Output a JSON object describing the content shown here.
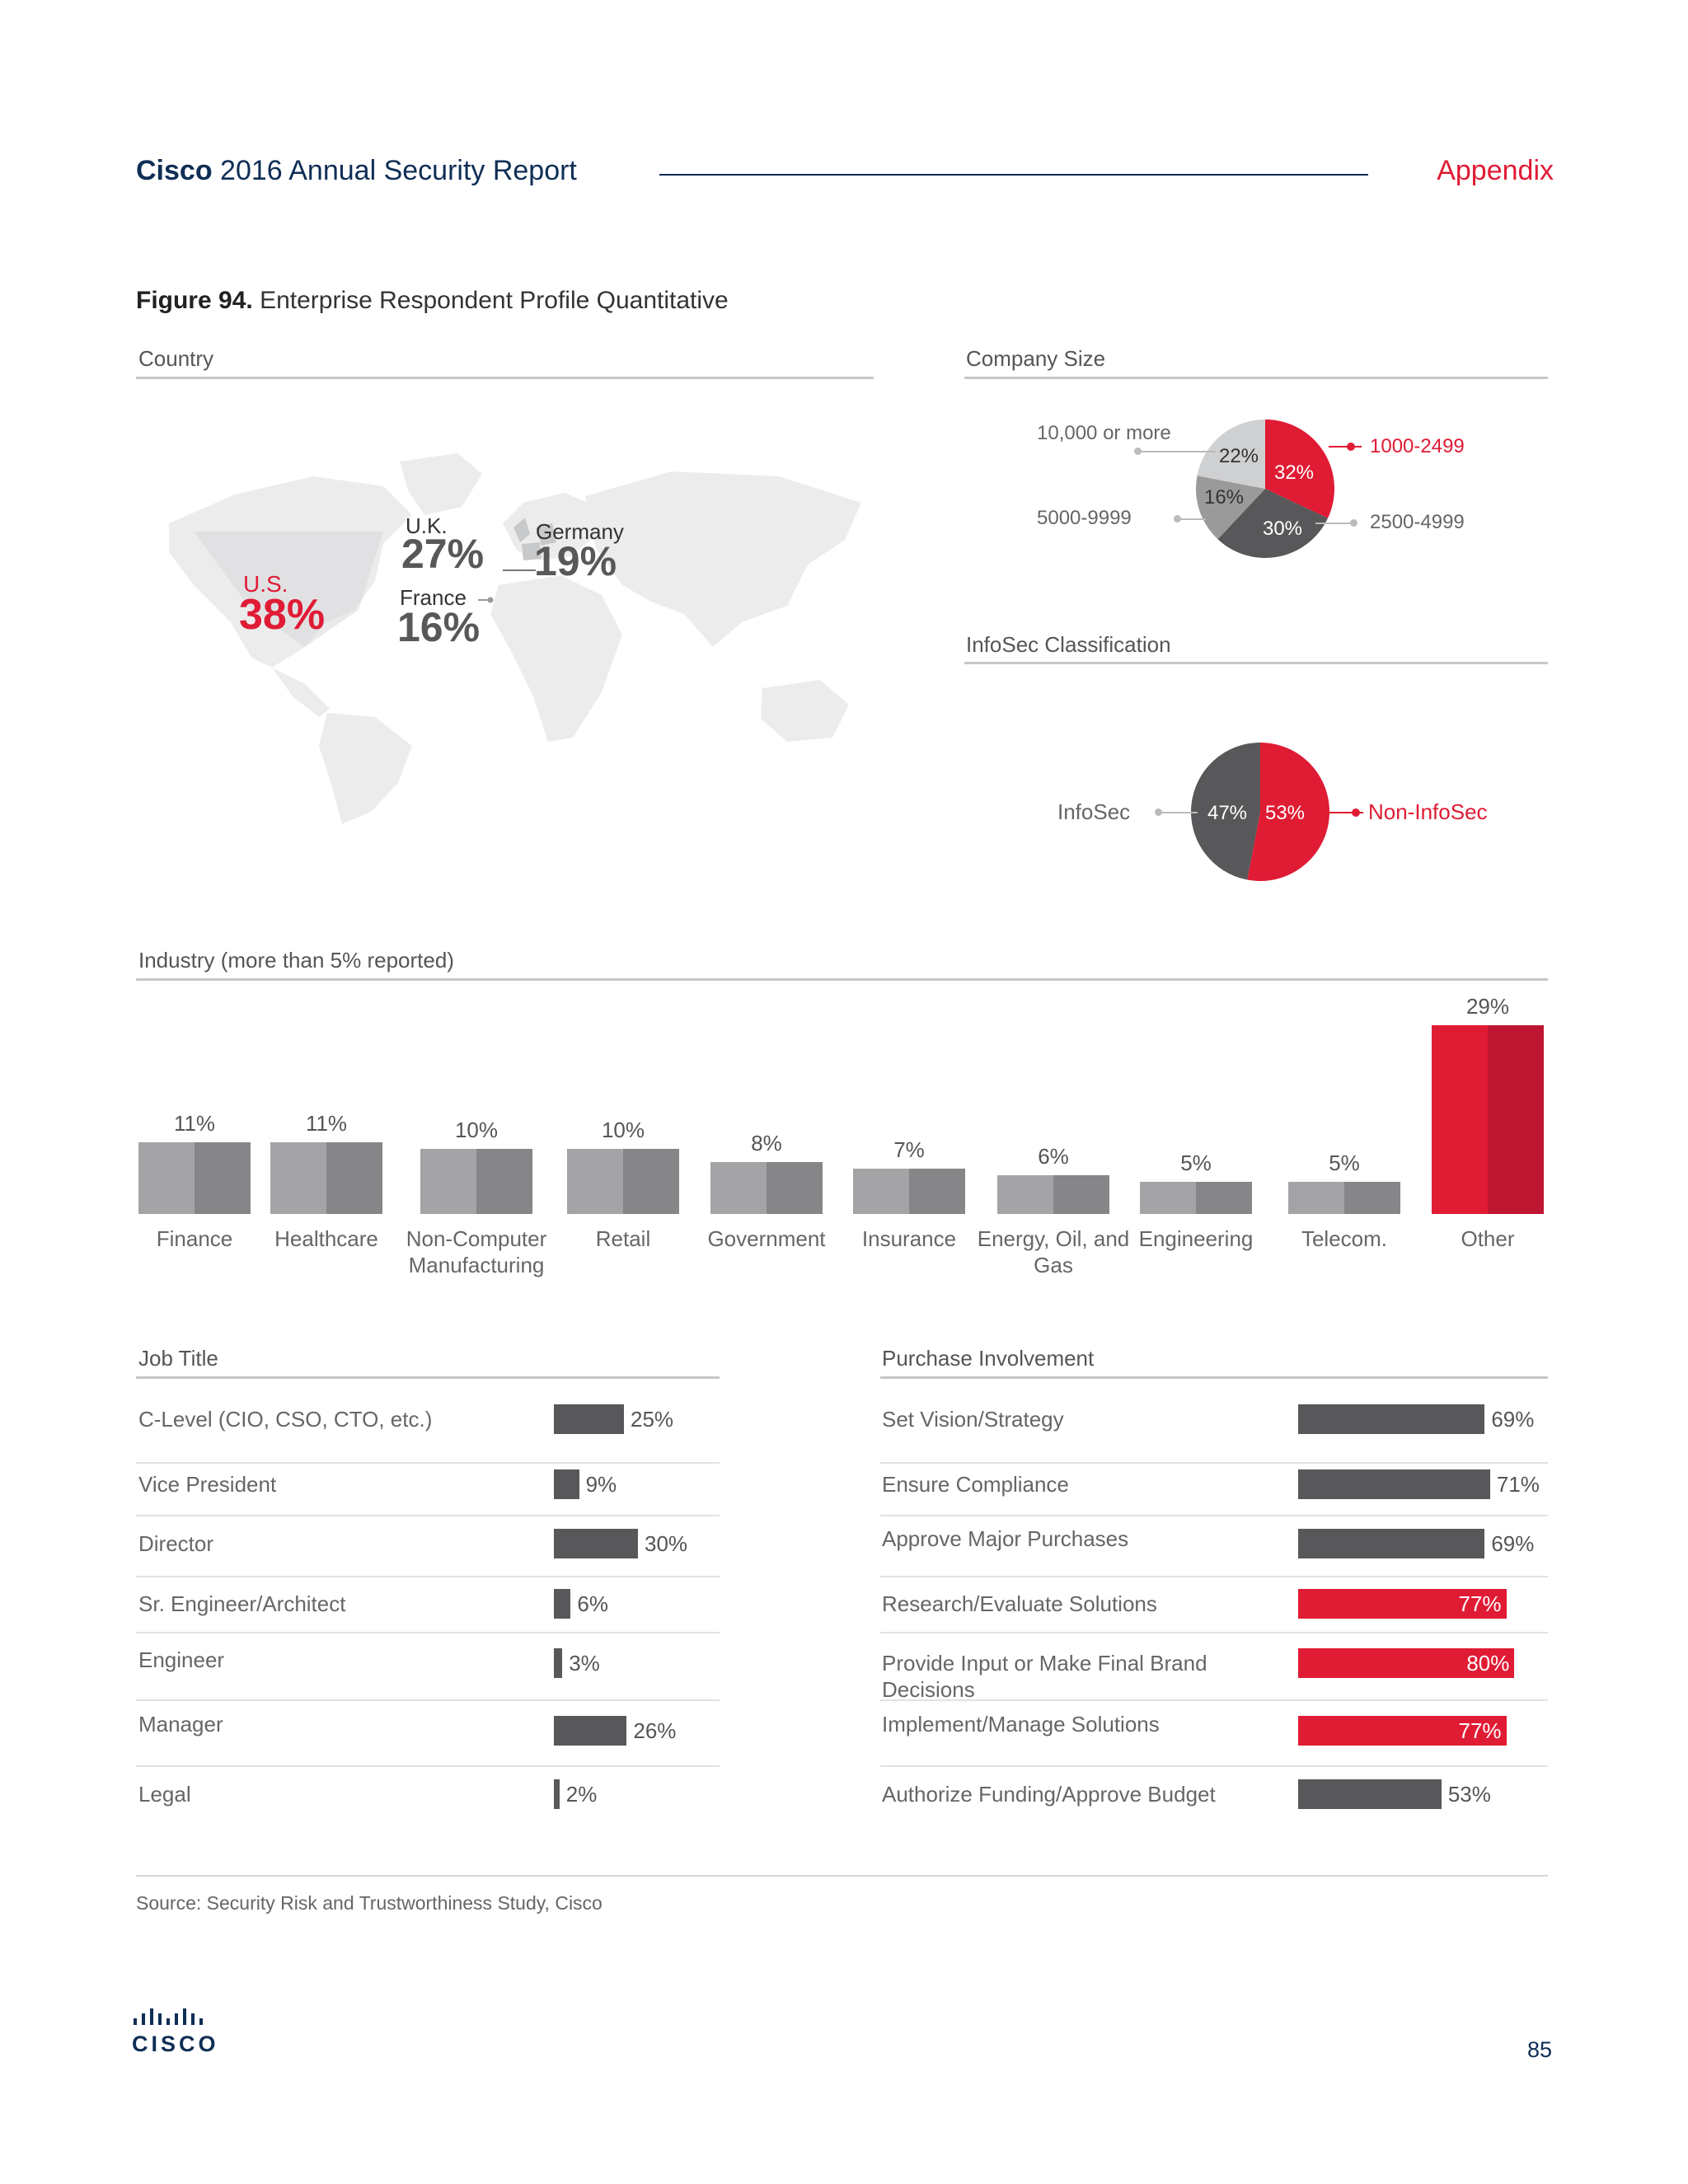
{
  "header": {
    "brand": "Cisco",
    "title": "2016 Annual Security Report",
    "section": "Appendix",
    "page_number": "85",
    "logo_text": "CISCO"
  },
  "figure": {
    "number": "Figure 94.",
    "title": "Enterprise Respondent Profile Quantitative"
  },
  "sections": {
    "country": "Country",
    "company_size": "Company Size",
    "infosec": "InfoSec Classification",
    "industry": "Industry (more than 5% reported)",
    "job_title": "Job Title",
    "purchase": "Purchase Involvement"
  },
  "source": "Source: Security Risk and Trustworthiness Study, Cisco",
  "colors": {
    "red": "#e01b34",
    "dark": "#58585a",
    "navy": "#0e2e55",
    "gray": "#9a9a9a",
    "light": "#cfd0d2"
  },
  "chart_data": [
    {
      "type": "map",
      "title": "Country",
      "entries": [
        {
          "name": "U.S.",
          "value": "38%",
          "highlight": true
        },
        {
          "name": "U.K.",
          "value": "27%"
        },
        {
          "name": "Germany",
          "value": "19%"
        },
        {
          "name": "France",
          "value": "16%"
        }
      ]
    },
    {
      "type": "pie",
      "title": "Company Size",
      "slices": [
        {
          "name": "1000-2499",
          "value": 32,
          "label": "32%",
          "color": "#e01b34"
        },
        {
          "name": "2500-4999",
          "value": 30,
          "label": "30%",
          "color": "#58585a"
        },
        {
          "name": "5000-9999",
          "value": 16,
          "label": "16%",
          "color": "#9a9a9a"
        },
        {
          "name": "10,000 or more",
          "value": 22,
          "label": "22%",
          "color": "#cfd0d2"
        }
      ]
    },
    {
      "type": "pie",
      "title": "InfoSec Classification",
      "slices": [
        {
          "name": "Non-InfoSec",
          "value": 53,
          "label": "53%",
          "color": "#e01b34"
        },
        {
          "name": "InfoSec",
          "value": 47,
          "label": "47%",
          "color": "#58585a"
        }
      ]
    },
    {
      "type": "bar",
      "title": "Industry (more than 5% reported)",
      "categories": [
        "Finance",
        "Healthcare",
        "Non-Computer Manufacturing",
        "Retail",
        "Government",
        "Insurance",
        "Energy, Oil, and Gas",
        "Engineering",
        "Telecom.",
        "Other"
      ],
      "values": [
        11,
        11,
        10,
        10,
        8,
        7,
        6,
        5,
        5,
        29
      ],
      "labels": [
        "11%",
        "11%",
        "10%",
        "10%",
        "8%",
        "7%",
        "6%",
        "5%",
        "5%",
        "29%"
      ]
    },
    {
      "type": "bar",
      "orientation": "horizontal",
      "title": "Job Title",
      "categories": [
        "C-Level (CIO, CSO, CTO, etc.)",
        "Vice President",
        "Director",
        "Sr. Engineer/Architect",
        "Engineer",
        "Manager",
        "Legal"
      ],
      "values": [
        25,
        9,
        30,
        6,
        3,
        26,
        2
      ],
      "labels": [
        "25%",
        "9%",
        "30%",
        "6%",
        "3%",
        "26%",
        "2%"
      ]
    },
    {
      "type": "bar",
      "orientation": "horizontal",
      "title": "Purchase Involvement",
      "categories": [
        "Set Vision/Strategy",
        "Ensure Compliance",
        "Approve Major Purchases",
        "Research/Evaluate Solutions",
        "Provide Input or Make Final Brand Decisions",
        "Implement/Manage Solutions",
        "Authorize Funding/Approve Budget"
      ],
      "values": [
        69,
        71,
        69,
        77,
        80,
        77,
        53
      ],
      "labels": [
        "69%",
        "71%",
        "69%",
        "77%",
        "80%",
        "77%",
        "53%"
      ],
      "highlight": [
        false,
        false,
        false,
        true,
        true,
        true,
        false
      ]
    }
  ]
}
